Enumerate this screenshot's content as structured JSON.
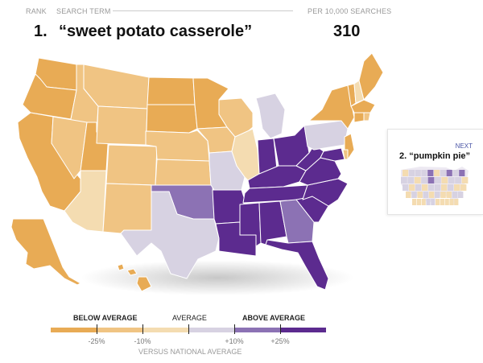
{
  "header": {
    "rank_label": "RANK",
    "term_label": "SEARCH TERM",
    "rate_label": "PER 10,000 SEARCHES",
    "rank": "1.",
    "term": "“sweet potato casserole”",
    "rate": "310"
  },
  "next": {
    "label": "NEXT",
    "term": "2. “pumpkin pie”"
  },
  "legend": {
    "below": "BELOW AVERAGE",
    "average": "AVERAGE",
    "above": "ABOVE AVERAGE",
    "ticks": [
      "-25%",
      "-10%",
      "+10%",
      "+25%"
    ],
    "caption": "VERSUS NATIONAL AVERAGE",
    "colors": [
      "#e8ab55",
      "#f0c483",
      "#f4dcb1",
      "#d7d2e2",
      "#8c72b4",
      "#5c2b8f"
    ]
  },
  "states": [
    {
      "id": "WA",
      "level": 0
    },
    {
      "id": "OR",
      "level": 0
    },
    {
      "id": "CA",
      "level": 0
    },
    {
      "id": "ID",
      "level": 1
    },
    {
      "id": "NV",
      "level": 1
    },
    {
      "id": "UT",
      "level": 0
    },
    {
      "id": "AZ",
      "level": 2
    },
    {
      "id": "MT",
      "level": 1
    },
    {
      "id": "WY",
      "level": 1
    },
    {
      "id": "CO",
      "level": 1
    },
    {
      "id": "NM",
      "level": 1
    },
    {
      "id": "ND",
      "level": 0
    },
    {
      "id": "SD",
      "level": 0
    },
    {
      "id": "NE",
      "level": 1
    },
    {
      "id": "KS",
      "level": 1
    },
    {
      "id": "OK",
      "level": 4
    },
    {
      "id": "TX",
      "level": 3
    },
    {
      "id": "MN",
      "level": 0
    },
    {
      "id": "IA",
      "level": 1
    },
    {
      "id": "MO",
      "level": 3
    },
    {
      "id": "AR",
      "level": 5
    },
    {
      "id": "LA",
      "level": 5
    },
    {
      "id": "WI",
      "level": 1
    },
    {
      "id": "IL",
      "level": 2
    },
    {
      "id": "MI",
      "level": 3
    },
    {
      "id": "IN",
      "level": 5
    },
    {
      "id": "OH",
      "level": 5
    },
    {
      "id": "KY",
      "level": 5
    },
    {
      "id": "TN",
      "level": 5
    },
    {
      "id": "MS",
      "level": 5
    },
    {
      "id": "AL",
      "level": 5
    },
    {
      "id": "GA",
      "level": 4
    },
    {
      "id": "FL",
      "level": 5
    },
    {
      "id": "SC",
      "level": 5
    },
    {
      "id": "NC",
      "level": 5
    },
    {
      "id": "VA",
      "level": 5
    },
    {
      "id": "WV",
      "level": 5
    },
    {
      "id": "PA",
      "level": 3
    },
    {
      "id": "NY",
      "level": 0
    },
    {
      "id": "VT",
      "level": 0
    },
    {
      "id": "NH",
      "level": 2
    },
    {
      "id": "ME",
      "level": 0
    },
    {
      "id": "MA",
      "level": 0
    },
    {
      "id": "CT",
      "level": 0
    },
    {
      "id": "RI",
      "level": 1
    },
    {
      "id": "NJ",
      "level": 0
    },
    {
      "id": "DE",
      "level": 1
    },
    {
      "id": "MD",
      "level": 5
    },
    {
      "id": "AK",
      "level": 0
    },
    {
      "id": "HI",
      "level": 0
    }
  ],
  "mini_levels": [
    2,
    3,
    3,
    3,
    4,
    2,
    3,
    4,
    3,
    4,
    3,
    3,
    2,
    3,
    4,
    3,
    2,
    3,
    3,
    2,
    3,
    2,
    3,
    2,
    3,
    3,
    2,
    3,
    2,
    2,
    2,
    3,
    2,
    3,
    2,
    3,
    2,
    2,
    3,
    3,
    2,
    2,
    2,
    3,
    3,
    2,
    2,
    2,
    2,
    2
  ]
}
